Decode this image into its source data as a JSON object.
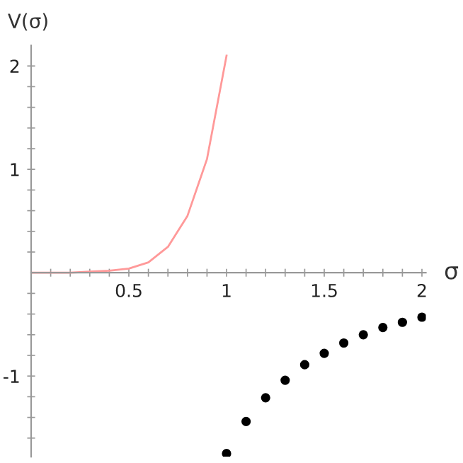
{
  "chart_data": {
    "type": "line",
    "xlabel": "σ",
    "ylabel": "V(σ)",
    "xlim": [
      0,
      2.02
    ],
    "ylim": [
      -1.78,
      2.2
    ],
    "xticks": [
      {
        "value": 0.1,
        "label": null
      },
      {
        "value": 0.2,
        "label": null
      },
      {
        "value": 0.3,
        "label": null
      },
      {
        "value": 0.4,
        "label": null
      },
      0.5,
      {
        "value": 0.6,
        "label": null
      },
      {
        "value": 0.7,
        "label": null
      },
      {
        "value": 0.8,
        "label": null
      },
      {
        "value": 0.9,
        "label": null
      },
      1,
      {
        "value": 1.1,
        "label": null
      },
      {
        "value": 1.2,
        "label": null
      },
      {
        "value": 1.3,
        "label": null
      },
      {
        "value": 1.4,
        "label": null
      },
      1.5,
      {
        "value": 1.6,
        "label": null
      },
      {
        "value": 1.7,
        "label": null
      },
      {
        "value": 1.8,
        "label": null
      },
      {
        "value": 1.9,
        "label": null
      },
      2
    ],
    "yticks": [
      {
        "value": -1.6,
        "label": null
      },
      {
        "value": -1.4,
        "label": null
      },
      {
        "value": -1.2,
        "label": null
      },
      -1,
      {
        "value": -0.8,
        "label": null
      },
      {
        "value": -0.6,
        "label": null
      },
      {
        "value": -0.4,
        "label": null
      },
      {
        "value": -0.2,
        "label": null
      },
      {
        "value": 0.2,
        "label": null
      },
      {
        "value": 0.4,
        "label": null
      },
      {
        "value": 0.6,
        "label": null
      },
      {
        "value": 0.8,
        "label": null
      },
      1,
      {
        "value": 1.2,
        "label": null
      },
      {
        "value": 1.4,
        "label": null
      },
      {
        "value": 1.6,
        "label": null
      },
      {
        "value": 1.8,
        "label": null
      },
      2
    ],
    "series": [
      {
        "color": "#ff9999",
        "x": [
          0,
          0.1,
          0.2,
          0.3,
          0.4,
          0.5,
          0.6,
          0.7,
          0.8,
          0.9,
          1.0
        ],
        "values": [
          0,
          0,
          0,
          0.01,
          0.02,
          0.04,
          0.1,
          0.25,
          0.55,
          1.1,
          2.1
        ]
      },
      {
        "type": "scatter",
        "color": "#000000",
        "marker": "circle",
        "x": [
          1.0,
          1.1,
          1.2,
          1.3,
          1.4,
          1.5,
          1.6,
          1.7,
          1.8,
          1.9,
          2.0
        ],
        "values": [
          -1.75,
          -1.44,
          -1.21,
          -1.04,
          -0.89,
          -0.78,
          -0.68,
          -0.6,
          -0.53,
          -0.48,
          -0.43
        ]
      }
    ]
  }
}
